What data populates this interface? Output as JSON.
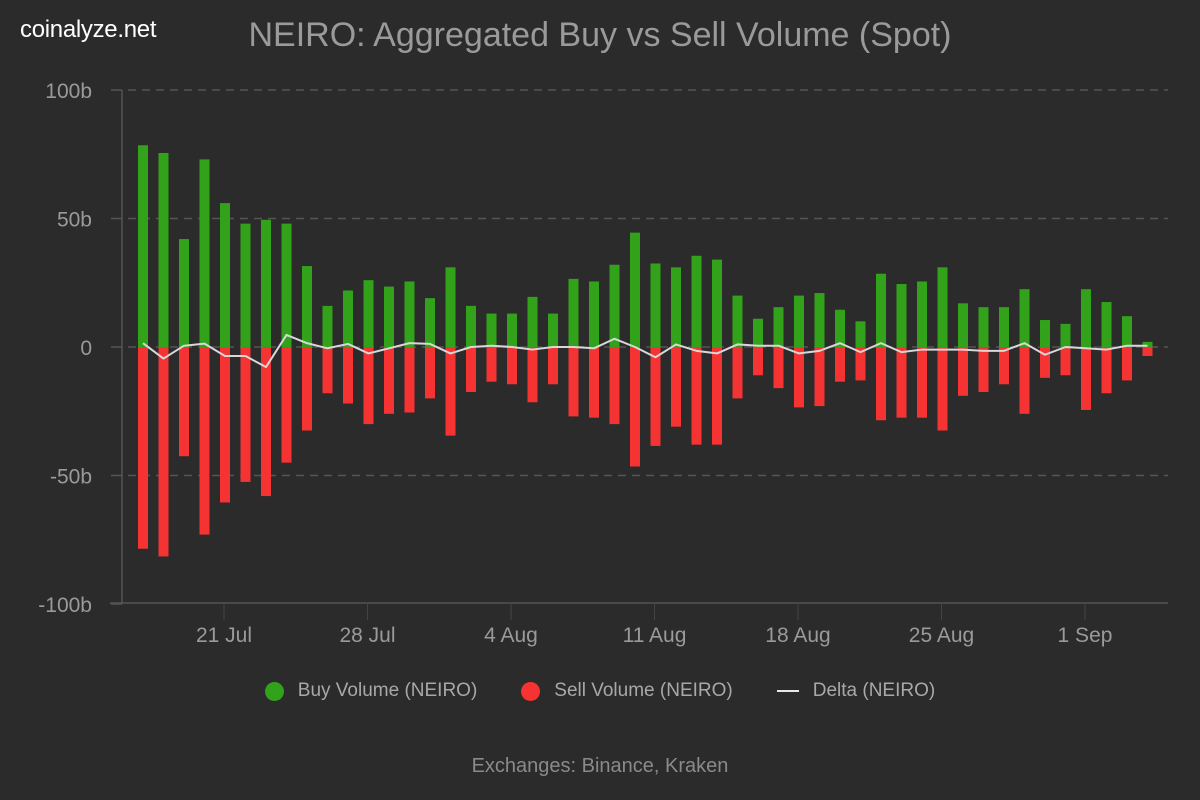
{
  "brand": "coinalyze.net",
  "footer": "Exchanges: Binance, Kraken",
  "colors": {
    "background": "#2b2b2b",
    "buy": "#31a21a",
    "sell": "#f53333",
    "delta": "#d8d8d8",
    "grid": "#555555",
    "text": "#9a9a9a"
  },
  "legend": [
    {
      "label": "Buy Volume (NEIRO)",
      "swatch": "dot",
      "color": "#31a21a"
    },
    {
      "label": "Sell Volume (NEIRO)",
      "swatch": "dot",
      "color": "#f53333"
    },
    {
      "label": "Delta (NEIRO)",
      "swatch": "line",
      "color": "#e8e8e8"
    }
  ],
  "chart_data": {
    "type": "bar",
    "title": "NEIRO: Aggregated Buy vs Sell Volume (Spot)",
    "xlabel": "",
    "ylabel": "",
    "ylim": [
      -100,
      100
    ],
    "yticks": [
      100,
      50,
      0,
      -50,
      -100
    ],
    "ytick_labels": [
      "100b",
      "50b",
      "0",
      "-50b",
      "-100b"
    ],
    "units": "billions (b)",
    "grid": true,
    "legend_position": "bottom-center",
    "x_start": "17 Jul",
    "x_end": "4 Sep",
    "xtick_labels": [
      "21 Jul",
      "28 Jul",
      "4 Aug",
      "11 Aug",
      "18 Aug",
      "25 Aug",
      "1 Sep"
    ],
    "xtick_indices": [
      4,
      11,
      18,
      25,
      32,
      39,
      46
    ],
    "categories": [
      "17 Jul",
      "18 Jul",
      "19 Jul",
      "20 Jul",
      "21 Jul",
      "22 Jul",
      "23 Jul",
      "24 Jul",
      "25 Jul",
      "26 Jul",
      "27 Jul",
      "28 Jul",
      "29 Jul",
      "30 Jul",
      "31 Jul",
      "1 Aug",
      "2 Aug",
      "3 Aug",
      "4 Aug",
      "5 Aug",
      "6 Aug",
      "7 Aug",
      "8 Aug",
      "9 Aug",
      "10 Aug",
      "11 Aug",
      "12 Aug",
      "13 Aug",
      "14 Aug",
      "15 Aug",
      "16 Aug",
      "17 Aug",
      "18 Aug",
      "19 Aug",
      "20 Aug",
      "21 Aug",
      "22 Aug",
      "23 Aug",
      "24 Aug",
      "25 Aug",
      "26 Aug",
      "27 Aug",
      "28 Aug",
      "29 Aug",
      "30 Aug",
      "31 Aug",
      "1 Sep",
      "2 Sep",
      "3 Sep",
      "4 Sep"
    ],
    "series": [
      {
        "name": "Buy Volume (NEIRO)",
        "type": "bar",
        "values": [
          78.5,
          75.5,
          42,
          73,
          56,
          48,
          49.5,
          48,
          31.5,
          16,
          22,
          26,
          23.5,
          25.5,
          19,
          31,
          16,
          13,
          13,
          19.5,
          13,
          26.5,
          25.5,
          32,
          44.5,
          32.5,
          31,
          35.5,
          34,
          20,
          11,
          15.5,
          20,
          21,
          14.5,
          10,
          28.5,
          24.5,
          25.5,
          31,
          17,
          15.5,
          15.5,
          22.5,
          10.5,
          9,
          22.5,
          17.5,
          12,
          2
        ]
      },
      {
        "name": "Sell Volume (NEIRO)",
        "type": "bar",
        "values": [
          -78.5,
          -81.5,
          -42.5,
          -73,
          -60.5,
          -52.5,
          -58,
          -45,
          -32.5,
          -18,
          -22,
          -30,
          -26,
          -25.5,
          -20,
          -34.5,
          -17.5,
          -13.5,
          -14.5,
          -21.5,
          -14.5,
          -27,
          -27.5,
          -30,
          -46.5,
          -38.5,
          -31,
          -38,
          -38,
          -20,
          -11,
          -16,
          -23.5,
          -23,
          -13.5,
          -13,
          -28.5,
          -27.5,
          -27.5,
          -32.5,
          -19,
          -17.5,
          -14.5,
          -26,
          -12,
          -11,
          -24.5,
          -18,
          -13,
          -3.5
        ]
      },
      {
        "name": "Delta (NEIRO)",
        "type": "line",
        "values": [
          1.5,
          -4.5,
          0.5,
          1.3,
          -3.5,
          -3.5,
          -7.8,
          4.7,
          1.5,
          -0.5,
          1.2,
          -2.5,
          -0.5,
          1.5,
          1.2,
          -2.5,
          0,
          0.5,
          0,
          -1,
          0,
          0,
          -0.5,
          3.2,
          0,
          -4,
          1,
          -1.5,
          -2.5,
          1,
          0.5,
          0.5,
          -2.5,
          -1.5,
          1.5,
          -2,
          1.5,
          -2,
          -1,
          -1,
          -1,
          -1.5,
          -1.5,
          1.5,
          -3,
          0,
          -0.5,
          -1,
          0.5,
          0.5
        ]
      }
    ]
  }
}
